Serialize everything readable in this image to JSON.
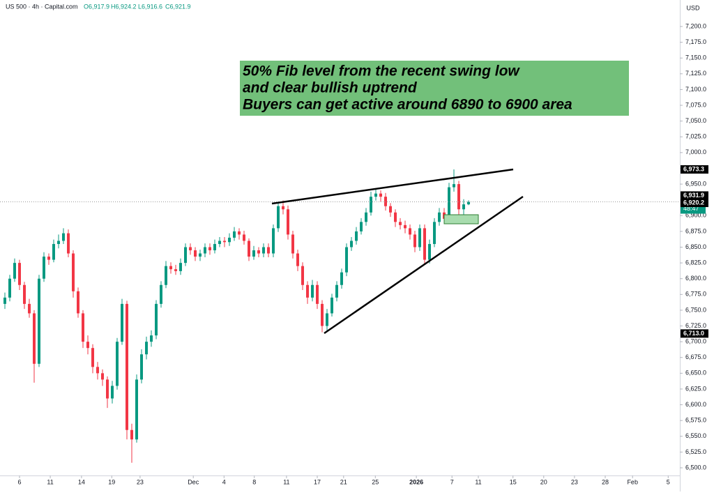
{
  "chart_data": {
    "type": "candlestick",
    "symbol": "US 500 · 4h · Capital.com",
    "ohlc_legend": [
      "O6,917.9",
      "H6,924.2",
      "L6,916.6",
      "C6,921.9"
    ],
    "currency": "USD",
    "annotation": [
      "50% Fib level from the recent swing low",
      "and clear bullish uptrend",
      "Buyers can get active around 6890 to 6900 area"
    ],
    "up_color": "#089981",
    "down_color": "#f23645",
    "ohlc": [
      [
        6760,
        6778,
        6752,
        6770
      ],
      [
        6770,
        6806,
        6764,
        6800
      ],
      [
        6800,
        6832,
        6795,
        6825
      ],
      [
        6825,
        6830,
        6782,
        6790
      ],
      [
        6790,
        6795,
        6752,
        6760
      ],
      [
        6760,
        6768,
        6738,
        6745
      ],
      [
        6745,
        6750,
        6635,
        6665
      ],
      [
        6665,
        6806,
        6660,
        6800
      ],
      [
        6800,
        6842,
        6795,
        6835
      ],
      [
        6835,
        6840,
        6822,
        6830
      ],
      [
        6830,
        6862,
        6826,
        6855
      ],
      [
        6855,
        6870,
        6848,
        6860
      ],
      [
        6860,
        6880,
        6855,
        6872
      ],
      [
        6872,
        6878,
        6834,
        6840
      ],
      [
        6840,
        6845,
        6770,
        6780
      ],
      [
        6780,
        6786,
        6738,
        6745
      ],
      [
        6745,
        6750,
        6690,
        6700
      ],
      [
        6700,
        6710,
        6680,
        6690
      ],
      [
        6690,
        6696,
        6650,
        6660
      ],
      [
        6660,
        6668,
        6640,
        6650
      ],
      [
        6650,
        6656,
        6630,
        6640
      ],
      [
        6640,
        6645,
        6595,
        6610
      ],
      [
        6610,
        6638,
        6602,
        6630
      ],
      [
        6630,
        6706,
        6624,
        6700
      ],
      [
        6700,
        6768,
        6695,
        6760
      ],
      [
        6760,
        6765,
        6545,
        6560
      ],
      [
        6560,
        6570,
        6508,
        6545
      ],
      [
        6545,
        6648,
        6540,
        6640
      ],
      [
        6640,
        6688,
        6634,
        6680
      ],
      [
        6680,
        6708,
        6672,
        6700
      ],
      [
        6700,
        6718,
        6692,
        6710
      ],
      [
        6710,
        6766,
        6704,
        6760
      ],
      [
        6760,
        6796,
        6754,
        6790
      ],
      [
        6790,
        6828,
        6785,
        6820
      ],
      [
        6820,
        6826,
        6808,
        6815
      ],
      [
        6815,
        6822,
        6806,
        6812
      ],
      [
        6812,
        6832,
        6806,
        6825
      ],
      [
        6825,
        6856,
        6820,
        6850
      ],
      [
        6850,
        6856,
        6838,
        6845
      ],
      [
        6845,
        6850,
        6828,
        6835
      ],
      [
        6835,
        6846,
        6828,
        6840
      ],
      [
        6840,
        6856,
        6834,
        6850
      ],
      [
        6850,
        6856,
        6838,
        6845
      ],
      [
        6845,
        6862,
        6840,
        6855
      ],
      [
        6855,
        6866,
        6850,
        6860
      ],
      [
        6860,
        6866,
        6850,
        6858
      ],
      [
        6858,
        6872,
        6852,
        6865
      ],
      [
        6865,
        6882,
        6860,
        6875
      ],
      [
        6875,
        6880,
        6862,
        6870
      ],
      [
        6870,
        6876,
        6854,
        6860
      ],
      [
        6860,
        6864,
        6828,
        6835
      ],
      [
        6835,
        6852,
        6830,
        6845
      ],
      [
        6845,
        6850,
        6834,
        6840
      ],
      [
        6840,
        6856,
        6834,
        6850
      ],
      [
        6850,
        6856,
        6834,
        6840
      ],
      [
        6840,
        6886,
        6834,
        6880
      ],
      [
        6880,
        6922,
        6874,
        6915
      ],
      [
        6915,
        6924,
        6902,
        6910
      ],
      [
        6910,
        6916,
        6862,
        6870
      ],
      [
        6870,
        6876,
        6832,
        6840
      ],
      [
        6840,
        6846,
        6812,
        6820
      ],
      [
        6820,
        6826,
        6782,
        6790
      ],
      [
        6790,
        6796,
        6760,
        6770
      ],
      [
        6770,
        6798,
        6764,
        6790
      ],
      [
        6790,
        6796,
        6752,
        6760
      ],
      [
        6760,
        6766,
        6715,
        6725
      ],
      [
        6725,
        6752,
        6718,
        6745
      ],
      [
        6745,
        6776,
        6740,
        6770
      ],
      [
        6770,
        6796,
        6764,
        6790
      ],
      [
        6790,
        6816,
        6784,
        6810
      ],
      [
        6810,
        6856,
        6804,
        6850
      ],
      [
        6850,
        6866,
        6844,
        6860
      ],
      [
        6860,
        6882,
        6854,
        6875
      ],
      [
        6875,
        6896,
        6870,
        6890
      ],
      [
        6890,
        6912,
        6884,
        6905
      ],
      [
        6905,
        6938,
        6900,
        6930
      ],
      [
        6930,
        6942,
        6924,
        6935
      ],
      [
        6935,
        6940,
        6922,
        6930
      ],
      [
        6930,
        6936,
        6908,
        6915
      ],
      [
        6915,
        6920,
        6898,
        6905
      ],
      [
        6905,
        6910,
        6882,
        6890
      ],
      [
        6890,
        6896,
        6878,
        6885
      ],
      [
        6885,
        6892,
        6872,
        6880
      ],
      [
        6880,
        6886,
        6862,
        6870
      ],
      [
        6870,
        6876,
        6842,
        6850
      ],
      [
        6850,
        6886,
        6844,
        6880
      ],
      [
        6880,
        6886,
        6822,
        6830
      ],
      [
        6830,
        6862,
        6824,
        6855
      ],
      [
        6855,
        6896,
        6850,
        6890
      ],
      [
        6890,
        6912,
        6884,
        6905
      ],
      [
        6905,
        6912,
        6888,
        6895
      ],
      [
        6895,
        6952,
        6890,
        6945
      ],
      [
        6945,
        6973.3,
        6938,
        6950
      ],
      [
        6950,
        6955,
        6902,
        6910
      ],
      [
        6910,
        6926,
        6896,
        6917.9
      ],
      [
        6917.9,
        6924.2,
        6916.6,
        6921.9
      ]
    ],
    "xlim": [
      -1,
      138
    ],
    "xticks": [
      {
        "value": 3,
        "label": "6"
      },
      {
        "value": 9.3,
        "label": "11"
      },
      {
        "value": 15.7,
        "label": "14"
      },
      {
        "value": 21.9,
        "label": "19"
      },
      {
        "value": 27.7,
        "label": "23"
      },
      {
        "value": 38.6,
        "label": "Dec"
      },
      {
        "value": 44.9,
        "label": "4"
      },
      {
        "value": 51.1,
        "label": "8"
      },
      {
        "value": 57.7,
        "label": "11"
      },
      {
        "value": 64,
        "label": "17"
      },
      {
        "value": 69.4,
        "label": "21"
      },
      {
        "value": 75.9,
        "label": "25"
      },
      {
        "value": 84.3,
        "label": "2026"
      },
      {
        "value": 91.6,
        "label": "7"
      },
      {
        "value": 97,
        "label": "11"
      },
      {
        "value": 104.1,
        "label": "15"
      },
      {
        "value": 110.4,
        "label": "20"
      },
      {
        "value": 116.7,
        "label": "23"
      },
      {
        "value": 123,
        "label": "28"
      },
      {
        "value": 128.6,
        "label": "Feb"
      },
      {
        "value": 135.9,
        "label": "5"
      }
    ],
    "ylim": [
      6500,
      7200
    ],
    "yticks": [
      {
        "value": 6500,
        "label": "6,500.0"
      },
      {
        "value": 6525,
        "label": "6,525.0"
      },
      {
        "value": 6550,
        "label": "6,550.0"
      },
      {
        "value": 6575,
        "label": "6,575.0"
      },
      {
        "value": 6600,
        "label": "6,600.0"
      },
      {
        "value": 6625,
        "label": "6,625.0"
      },
      {
        "value": 6650,
        "label": "6,650.0"
      },
      {
        "value": 6675,
        "label": "6,675.0"
      },
      {
        "value": 6700,
        "label": "6,700.0"
      },
      {
        "value": 6725,
        "label": "6,725.0"
      },
      {
        "value": 6750,
        "label": "6,750.0"
      },
      {
        "value": 6775,
        "label": "6,775.0"
      },
      {
        "value": 6800,
        "label": "6,800.0"
      },
      {
        "value": 6825,
        "label": "6,825.0"
      },
      {
        "value": 6850,
        "label": "6,850.0"
      },
      {
        "value": 6875,
        "label": "6,875.0"
      },
      {
        "value": 6900,
        "label": "6,900.0"
      },
      {
        "value": 6925,
        "label": "6,925.0"
      },
      {
        "value": 6950,
        "label": "6,950.0"
      },
      {
        "value": 6975,
        "label": "6,975.0"
      },
      {
        "value": 7000,
        "label": "7,000.0"
      },
      {
        "value": 7025,
        "label": "7,025.0"
      },
      {
        "value": 7050,
        "label": "7,050.0"
      },
      {
        "value": 7075,
        "label": "7,075.0"
      },
      {
        "value": 7100,
        "label": "7,100.0"
      },
      {
        "value": 7125,
        "label": "7,125.0"
      },
      {
        "value": 7150,
        "label": "7,150.0"
      },
      {
        "value": 7175,
        "label": "7,175.0"
      },
      {
        "value": 7200,
        "label": "7,200.0"
      }
    ],
    "price_labels": [
      {
        "value": 6973.3,
        "label": "6,973.3",
        "color": "#000000"
      },
      {
        "value": 6931.9,
        "label": "6,931.9",
        "color": "#000000"
      },
      {
        "value": 6920.2,
        "label": "6,920.2",
        "color": "#000000"
      },
      {
        "value": 6713.0,
        "label": "6,713.0",
        "color": "#000000"
      }
    ],
    "last_price": {
      "value": 6921.9,
      "label": "6,921.9",
      "countdown": "48:47",
      "color": "#089981"
    }
  }
}
